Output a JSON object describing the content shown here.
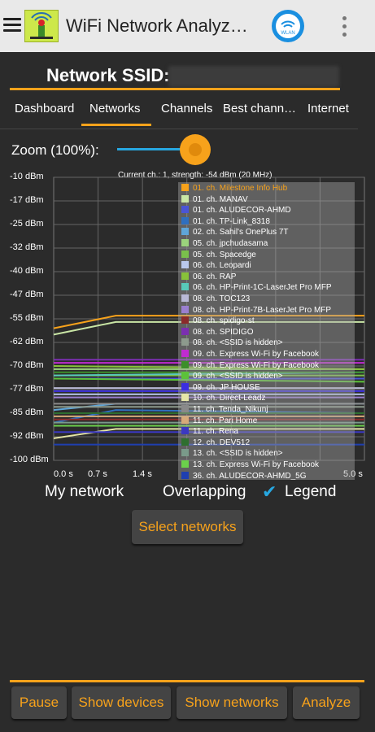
{
  "app": {
    "title": "WiFi Network Analyz…",
    "wlan_badge": "WLAN"
  },
  "network": {
    "ssid_label": "Network SSID:"
  },
  "tabs": [
    {
      "label": "Dashboard"
    },
    {
      "label": "Networks",
      "active": true
    },
    {
      "label": "Channels"
    },
    {
      "label": "Best chann…"
    },
    {
      "label": "Internet"
    }
  ],
  "zoom": {
    "label": "Zoom (100%):",
    "value_percent": 100,
    "level": 0.85
  },
  "chart_data": {
    "type": "line",
    "title": "Current ch.: 1, strength: -54 dBm (20 MHz)",
    "ylabel": "",
    "xlabel": "",
    "y_tick_labels": [
      "-10 dBm",
      "-17 dBm",
      "-25 dBm",
      "-32 dBm",
      "-40 dBm",
      "-47 dBm",
      "-55 dBm",
      "-62 dBm",
      "-70 dBm",
      "-77 dBm",
      "-85 dBm",
      "-92 dBm",
      "-100 dBm"
    ],
    "x_tick_labels": [
      "0.0 s",
      "0.7 s",
      "1.4 s",
      "5.0 s"
    ],
    "ylim": [
      -100,
      -10
    ],
    "xlim": [
      0,
      5
    ],
    "series": [
      {
        "name": "01. ch. Milestone Info Hub",
        "color": "#f7a21b",
        "values": [
          [
            0,
            -58
          ],
          [
            1,
            -54
          ],
          [
            5,
            -54
          ]
        ]
      },
      {
        "name": "01. ch. MANAV",
        "color": "#c9e6a5",
        "values": [
          [
            0,
            -60
          ],
          [
            1,
            -56
          ],
          [
            5,
            -56
          ]
        ]
      },
      {
        "name": "01. ch. ALUDECOR-AHMD",
        "color": "#4a55d6",
        "values": [
          [
            0,
            -74
          ],
          [
            5,
            -74
          ]
        ]
      },
      {
        "name": "01. ch. TP-Link_8318",
        "color": "#2f6fbf",
        "values": [
          [
            0,
            -88
          ],
          [
            1,
            -84
          ],
          [
            5,
            -85
          ]
        ]
      },
      {
        "name": "02. ch. Sahil's OnePlus 7T",
        "color": "#5fa6d9",
        "values": [
          [
            0,
            -84
          ],
          [
            1,
            -82
          ],
          [
            5,
            -82
          ]
        ]
      },
      {
        "name": "05. ch. jpchudasama",
        "color": "#9bd37c",
        "values": [
          [
            0,
            -71
          ],
          [
            5,
            -71
          ]
        ]
      },
      {
        "name": "05. ch. Spacedge",
        "color": "#7ac04b",
        "values": [
          [
            0,
            -73
          ],
          [
            5,
            -73
          ]
        ]
      },
      {
        "name": "06. ch. Leopardi",
        "color": "#b9c8ee",
        "values": [
          [
            0,
            -79
          ],
          [
            5,
            -79
          ]
        ]
      },
      {
        "name": "06. ch. RAP",
        "color": "#88c23a",
        "values": [
          [
            0,
            -70
          ],
          [
            5,
            -71
          ]
        ]
      },
      {
        "name": "06. ch. HP-Print-1C-LaserJet Pro MFP",
        "color": "#58c9b9",
        "values": [
          [
            0,
            -73
          ],
          [
            5,
            -72
          ]
        ]
      },
      {
        "name": "08. ch. TOC123",
        "color": "#b9b9d6",
        "values": [
          [
            0,
            -77
          ],
          [
            5,
            -77
          ]
        ]
      },
      {
        "name": "08. ch. HP-Print-7B-LaserJet Pro MFP",
        "color": "#9a7fd0",
        "values": [
          [
            0,
            -80
          ],
          [
            5,
            -80
          ]
        ]
      },
      {
        "name": "08. ch. spidigo-st",
        "color": "#8a2b2b",
        "values": [
          [
            0,
            -87
          ],
          [
            5,
            -87
          ]
        ]
      },
      {
        "name": "08. ch. SPIDIGO",
        "color": "#7b2fb0",
        "values": [
          [
            0,
            -68
          ],
          [
            5,
            -68
          ]
        ]
      },
      {
        "name": "08. ch. <SSID is hidden>",
        "color": "#8d9a8d",
        "values": [
          [
            0,
            -83
          ],
          [
            5,
            -83
          ]
        ]
      },
      {
        "name": "09. ch. Express Wi-Fi by Facebook",
        "color": "#c02bd0",
        "values": [
          [
            0,
            -69
          ],
          [
            5,
            -69
          ]
        ]
      },
      {
        "name": "09. ch. Express Wi-Fi by Facebook",
        "color": "#3c8f2a",
        "values": [
          [
            0,
            -72
          ],
          [
            5,
            -72
          ]
        ]
      },
      {
        "name": "09. ch. <SSID is hidden>",
        "color": "#5cc23a",
        "values": [
          [
            0,
            -74
          ],
          [
            5,
            -75
          ]
        ]
      },
      {
        "name": "09. ch. JP HOUSE",
        "color": "#3b2ee0",
        "values": [
          [
            0,
            -78
          ],
          [
            5,
            -78
          ]
        ]
      },
      {
        "name": "10. ch. Direct-Leadz",
        "color": "#e6e6a8",
        "values": [
          [
            0,
            -93
          ],
          [
            1,
            -90
          ],
          [
            5,
            -90
          ]
        ]
      },
      {
        "name": "11. ch. Tenda_Nikunj",
        "color": "#8a8a8a",
        "values": [
          [
            0,
            -82
          ],
          [
            5,
            -82
          ]
        ]
      },
      {
        "name": "11. ch. Pari Home",
        "color": "#d7aa7a",
        "values": [
          [
            0,
            -86
          ],
          [
            5,
            -86
          ]
        ]
      },
      {
        "name": "11. ch. Rena",
        "color": "#3b38c0",
        "values": [
          [
            0,
            -91
          ],
          [
            5,
            -91
          ]
        ]
      },
      {
        "name": "12. ch. DEV512",
        "color": "#2f6f2f",
        "values": [
          [
            0,
            -85
          ],
          [
            5,
            -85
          ]
        ]
      },
      {
        "name": "13. ch. <SSID is hidden>",
        "color": "#7a9a8a",
        "values": [
          [
            0,
            -88
          ],
          [
            5,
            -88
          ]
        ]
      },
      {
        "name": "13. ch. Express Wi-Fi by Facebook",
        "color": "#6bd04b",
        "values": [
          [
            0,
            -89
          ],
          [
            5,
            -89
          ]
        ]
      },
      {
        "name": "36. ch. ALUDECOR-AHMD_5G",
        "color": "#1f3fb0",
        "values": [
          [
            0,
            -95
          ],
          [
            5,
            -95
          ]
        ]
      }
    ]
  },
  "options": {
    "my_network": "My network",
    "overlapping": "Overlapping",
    "legend": "Legend",
    "legend_checked": true
  },
  "buttons": {
    "select_networks": "Select networks",
    "pause": "Pause",
    "show_devices": "Show devices",
    "show_networks": "Show networks",
    "analyze": "Analyze"
  }
}
